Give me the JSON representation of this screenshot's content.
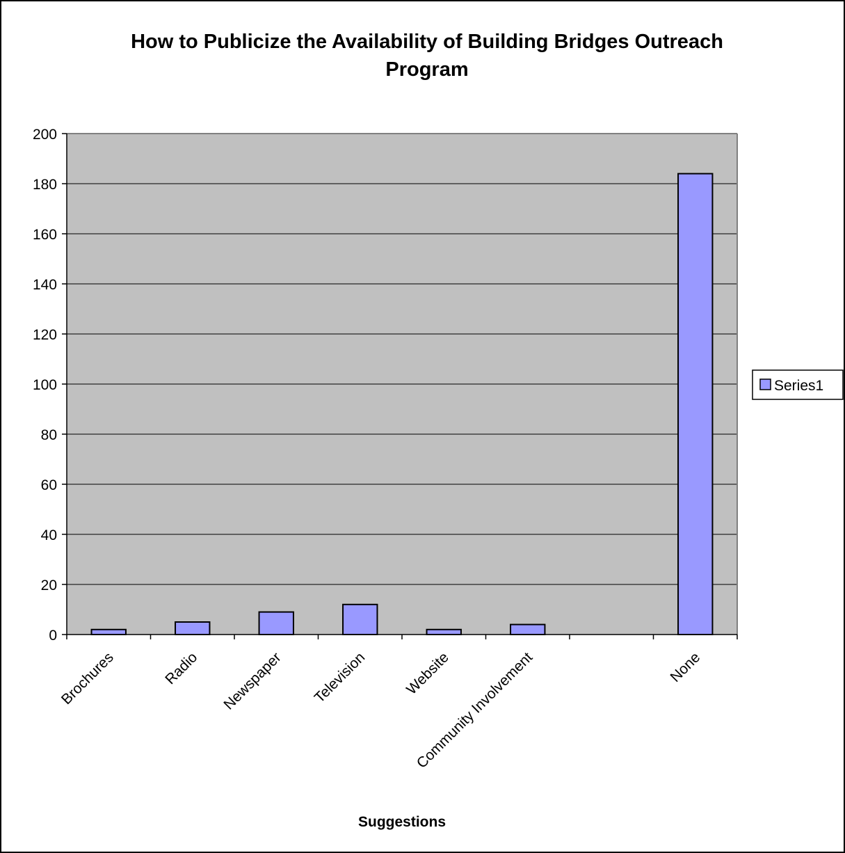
{
  "chart_data": {
    "type": "bar",
    "title_lines": [
      "How to Publicize the Availability of Building Bridges Outreach",
      "Program"
    ],
    "xlabel": "Suggestions",
    "ylabel": "",
    "categories": [
      "Brochures",
      "Radio",
      "Newspaper",
      "Television",
      "Website",
      "Community Involvement",
      "",
      "None"
    ],
    "series": [
      {
        "name": "Series1",
        "values": [
          2,
          5,
          9,
          12,
          2,
          4,
          0,
          184
        ]
      }
    ],
    "ylim": [
      0,
      200
    ],
    "yticks": [
      0,
      20,
      40,
      60,
      80,
      100,
      120,
      140,
      160,
      180,
      200
    ],
    "grid": true,
    "legend": "right",
    "colors": {
      "bar_fill": "#9999ff",
      "bar_stroke": "#000000",
      "plot_background": "#c0c0c0",
      "gridline": "#000000",
      "plot_border": "#808080"
    }
  }
}
